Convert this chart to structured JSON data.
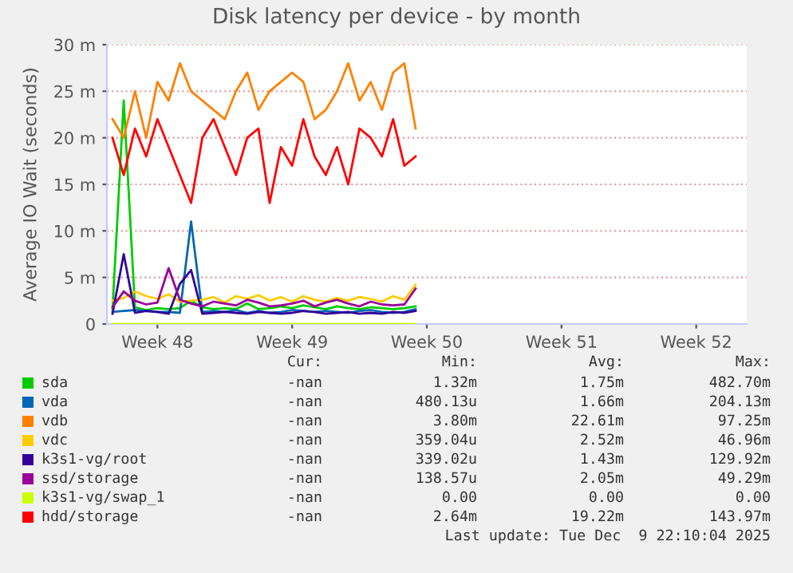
{
  "chart_data": {
    "type": "line",
    "title": "Disk latency per device - by month",
    "ylabel": "Average IO Wait (seconds)",
    "categories": [
      null,
      null,
      null,
      null,
      "Week 48",
      null,
      null,
      null,
      null,
      null,
      null,
      null,
      null,
      null,
      null,
      null,
      "Week 49",
      null,
      null,
      null,
      null,
      null,
      null,
      null,
      null,
      null,
      null,
      null,
      "Week 50",
      null,
      null,
      null,
      null,
      null,
      null,
      null,
      null,
      null,
      null,
      null,
      "Week 51",
      null,
      null,
      null,
      null,
      null,
      null,
      null,
      null,
      null,
      null,
      null,
      "Week 52",
      null,
      null,
      null,
      null
    ],
    "series": [
      {
        "name": "sda",
        "color": "#00cc00",
        "values": [
          1.6,
          24,
          1.8,
          1.5,
          1.7,
          1.6,
          1.7,
          2.5,
          1.8,
          1.6,
          1.7,
          1.6,
          2.2,
          1.6,
          1.7,
          1.9,
          1.7,
          2.0,
          1.8,
          1.6,
          1.9,
          1.7,
          1.6,
          1.8,
          1.7,
          1.6,
          1.7,
          1.9,
          null,
          null,
          null,
          null,
          null,
          null,
          null,
          null,
          null,
          null,
          null,
          null,
          null,
          null,
          null,
          null,
          null,
          null,
          null,
          null,
          null,
          null,
          null,
          null,
          null,
          null,
          null,
          null,
          null
        ]
      },
      {
        "name": "vda",
        "color": "#0066b3",
        "values": [
          1.3,
          1.4,
          1.5,
          1.4,
          1.3,
          1.3,
          1.2,
          11,
          1.3,
          1.4,
          1.3,
          1.5,
          1.2,
          1.4,
          1.2,
          1.3,
          1.5,
          1.4,
          1.3,
          1.4,
          1.3,
          1.2,
          1.4,
          1.5,
          1.3,
          1.2,
          1.3,
          1.6,
          null,
          null,
          null,
          null,
          null,
          null,
          null,
          null,
          null,
          null,
          null,
          null,
          null,
          null,
          null,
          null,
          null,
          null,
          null,
          null,
          null,
          null,
          null,
          null,
          null,
          null,
          null,
          null,
          null
        ]
      },
      {
        "name": "vdb",
        "color": "#ff8000",
        "values": [
          22,
          20,
          25,
          20,
          26,
          24,
          28,
          25,
          24,
          23,
          22,
          25,
          27,
          23,
          25,
          26,
          27,
          26,
          22,
          23,
          25,
          28,
          24,
          26,
          23,
          27,
          28,
          21,
          null,
          null,
          null,
          null,
          null,
          null,
          null,
          null,
          null,
          null,
          null,
          null,
          null,
          null,
          null,
          null,
          null,
          null,
          null,
          null,
          null,
          null,
          null,
          null,
          null,
          null,
          null,
          null,
          null
        ]
      },
      {
        "name": "vdc",
        "color": "#ffcc00",
        "values": [
          2.5,
          2.8,
          3.5,
          3.0,
          2.7,
          3.2,
          2.4,
          2.5,
          2.6,
          2.9,
          2.3,
          3.0,
          2.7,
          3.1,
          2.5,
          2.9,
          2.4,
          3.0,
          2.6,
          2.4,
          2.8,
          2.5,
          2.9,
          2.7,
          2.4,
          3.0,
          2.6,
          4.2,
          null,
          null,
          null,
          null,
          null,
          null,
          null,
          null,
          null,
          null,
          null,
          null,
          null,
          null,
          null,
          null,
          null,
          null,
          null,
          null,
          null,
          null,
          null,
          null,
          null,
          null,
          null,
          null,
          null
        ]
      },
      {
        "name": "k3s1-vg/root",
        "color": "#330099",
        "values": [
          1.1,
          7.5,
          1.2,
          1.4,
          1.3,
          1.1,
          4.3,
          5.8,
          1.1,
          1.2,
          1.3,
          1.2,
          1.1,
          1.3,
          1.2,
          1.1,
          1.2,
          1.4,
          1.3,
          1.1,
          1.2,
          1.3,
          1.1,
          1.2,
          1.1,
          1.3,
          1.2,
          1.4,
          null,
          null,
          null,
          null,
          null,
          null,
          null,
          null,
          null,
          null,
          null,
          null,
          null,
          null,
          null,
          null,
          null,
          null,
          null,
          null,
          null,
          null,
          null,
          null,
          null,
          null,
          null,
          null,
          null
        ]
      },
      {
        "name": "ssd/storage",
        "color": "#990099",
        "values": [
          1.8,
          3.5,
          2.5,
          2.1,
          2.3,
          6.0,
          2.6,
          2.2,
          1.9,
          2.4,
          2.2,
          2.0,
          2.6,
          2.3,
          1.9,
          2.0,
          2.2,
          2.5,
          1.9,
          2.3,
          2.6,
          2.2,
          1.9,
          2.4,
          2.1,
          2.0,
          2.1,
          3.8,
          null,
          null,
          null,
          null,
          null,
          null,
          null,
          null,
          null,
          null,
          null,
          null,
          null,
          null,
          null,
          null,
          null,
          null,
          null,
          null,
          null,
          null,
          null,
          null,
          null,
          null,
          null,
          null,
          null
        ]
      },
      {
        "name": "k3s1-vg/swap_1",
        "color": "#ccff00",
        "values": [
          0,
          0,
          0,
          0,
          0,
          0,
          0,
          0,
          0,
          0,
          0,
          0,
          0,
          0,
          0,
          0,
          0,
          0,
          0,
          0,
          0,
          0,
          0,
          0,
          0,
          0,
          0,
          0,
          null,
          null,
          null,
          null,
          null,
          null,
          null,
          null,
          null,
          null,
          null,
          null,
          null,
          null,
          null,
          null,
          null,
          null,
          null,
          null,
          null,
          null,
          null,
          null,
          null,
          null,
          null,
          null,
          null
        ]
      },
      {
        "name": "hdd/storage",
        "color": "#ff0000",
        "values": [
          20,
          16,
          21,
          18,
          22,
          19,
          16,
          13,
          20,
          22,
          19,
          16,
          20,
          21,
          13,
          19,
          17,
          22,
          18,
          16,
          19,
          15,
          21,
          20,
          18,
          22,
          17,
          18,
          null,
          null,
          null,
          null,
          null,
          null,
          null,
          null,
          null,
          null,
          null,
          null,
          null,
          null,
          null,
          null,
          null,
          null,
          null,
          null,
          null,
          null,
          null,
          null,
          null,
          null,
          null,
          null,
          null
        ]
      }
    ],
    "ylim": [
      0,
      30
    ],
    "yticks": [
      0,
      {
        "value": 5,
        "label": "5 m"
      },
      {
        "value": 10,
        "label": "10 m"
      },
      {
        "value": 15,
        "label": "15 m"
      },
      {
        "value": 20,
        "label": "20 m"
      },
      {
        "value": 25,
        "label": "25 m"
      },
      {
        "value": 30,
        "label": "30 m"
      }
    ],
    "grid": "y",
    "legend": "bottom",
    "line_style": "solid",
    "marker": "none",
    "annotations": [
      "Cur:",
      "Min:",
      "Avg:",
      "Max:",
      "-nan",
      "1.32m",
      "1.75m",
      "482.70m",
      "-nan",
      "480.13u",
      "1.66m",
      "204.13m",
      "-nan",
      "3.80m",
      "22.61m",
      "97.25m",
      "-nan",
      "359.04u",
      "2.52m",
      "46.96m",
      "-nan",
      "339.02u",
      "1.43m",
      "129.92m",
      "-nan",
      "138.57u",
      "2.05m",
      "49.29m",
      "-nan",
      "0.00",
      "0.00",
      "0.00",
      "-nan",
      "2.64m",
      "19.22m",
      "143.97m",
      "Last update: Tue Dec  9 22:10:04 2025"
    ]
  }
}
